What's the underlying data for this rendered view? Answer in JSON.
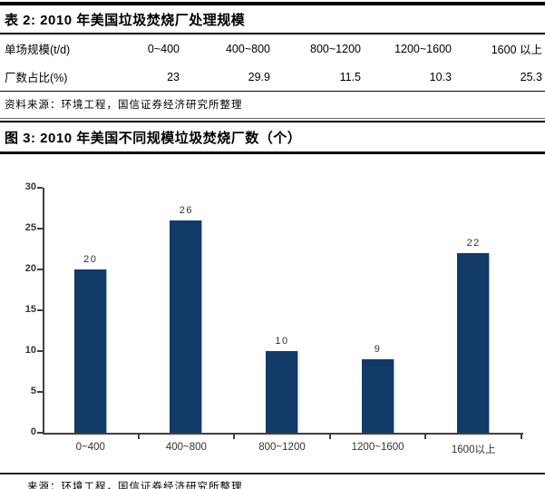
{
  "table": {
    "title": "表 2: 2010 年美国垃圾焚烧厂处理规模",
    "rows": [
      {
        "label": "单场规模(t/d)",
        "values": [
          "0~400",
          "400~800",
          "800~1200",
          "1200~1600",
          "1600 以上"
        ]
      },
      {
        "label": "厂数占比(%)",
        "values": [
          "23",
          "29.9",
          "11.5",
          "10.3",
          "25.3"
        ]
      }
    ],
    "source": "资料来源：环境工程，国信证券经济研究所整理"
  },
  "figure": {
    "title": "图 3: 2010 年美国不同规模垃圾焚烧厂数（个）",
    "source": "来源：环境工程，国信证券经济研究所整理"
  },
  "chart_data": {
    "type": "bar",
    "title": "2010 年美国不同规模垃圾焚烧厂数（个）",
    "categories": [
      "0~400",
      "400~800",
      "800~1200",
      "1200~1600",
      "1600以上"
    ],
    "values": [
      20,
      26,
      10,
      9,
      22
    ],
    "xlabel": "",
    "ylabel": "",
    "ylim": [
      0,
      30
    ],
    "yticks": [
      0,
      5,
      10,
      15,
      20,
      25,
      30
    ],
    "grid": false,
    "legend": false,
    "value_labels": true,
    "bar_color": "#123A68"
  },
  "colors": {
    "bar": "#123A68",
    "axis": "#404040",
    "chart_text": "#333333",
    "rule": "#000000"
  }
}
